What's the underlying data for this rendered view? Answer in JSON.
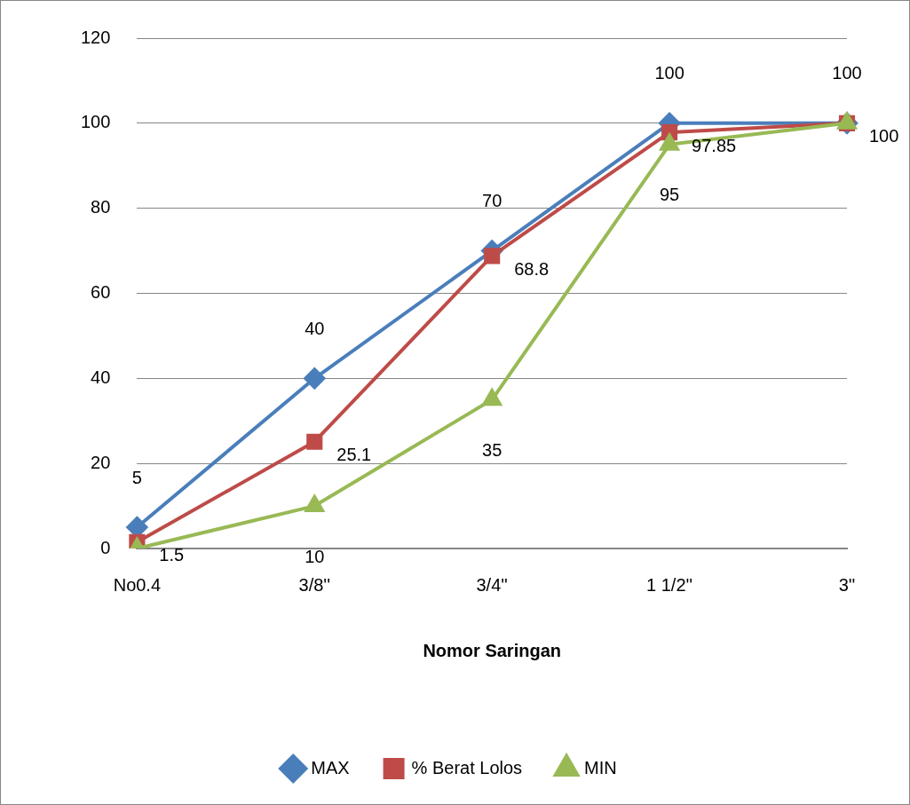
{
  "chart_data": {
    "type": "line",
    "xlabel": "Nomor Saringan",
    "categories": [
      "No0.4",
      "3/8''",
      "3/4''",
      "1 1/2''",
      "3''"
    ],
    "ylim": [
      0,
      120
    ],
    "yticks": [
      0,
      20,
      40,
      60,
      80,
      100,
      120
    ],
    "grid": "y",
    "legend": "bottom",
    "line_style": "solid",
    "series": [
      {
        "name": "MAX",
        "color": "#4a7ebb",
        "marker": "diamond",
        "values": [
          5,
          40,
          70,
          100,
          100
        ],
        "value_labels": [
          "5",
          "40",
          "70",
          "100",
          "100"
        ]
      },
      {
        "name": "% Berat Lolos",
        "color": "#be4b48",
        "marker": "square",
        "values": [
          1.5,
          25.1,
          68.8,
          97.85,
          100
        ],
        "value_labels": [
          "1.5",
          "25.1",
          "68.8",
          "97.85",
          "100"
        ]
      },
      {
        "name": "MIN",
        "color": "#98b954",
        "marker": "triangle",
        "values": [
          0,
          10,
          35,
          95,
          100
        ],
        "value_labels": [
          null,
          "10",
          "35",
          "95",
          null
        ]
      }
    ]
  }
}
